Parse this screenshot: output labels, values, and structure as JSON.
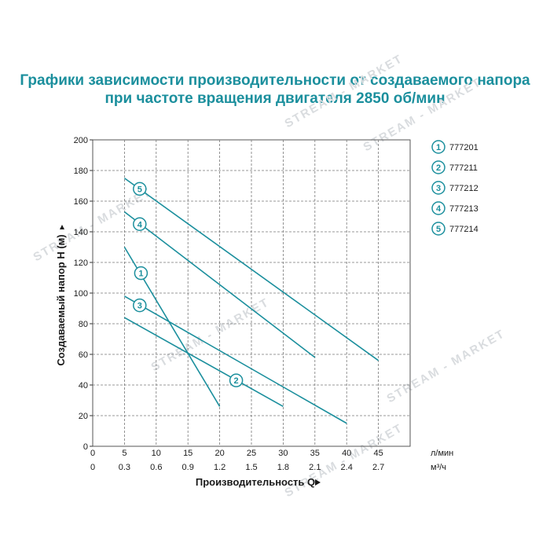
{
  "chart_data": {
    "type": "line",
    "title_lines": [
      "Графики зависимости производительности от создаваемого напора",
      "при частоте вращения двигателя 2850 об/мин"
    ],
    "ylabel": "Создаваемый напор H (м)",
    "xlabel": "Производительность Q",
    "xlabel_lpm_unit": "л/мин",
    "xlabel_m3h_unit": "м³/ч",
    "xlim": [
      0,
      50
    ],
    "ylim": [
      0,
      200
    ],
    "x_ticks_lpm": [
      "0",
      "5",
      "10",
      "15",
      "20",
      "25",
      "30",
      "35",
      "40",
      "45"
    ],
    "x_ticks_lpm_values": [
      0,
      5,
      10,
      15,
      20,
      25,
      30,
      35,
      40,
      45
    ],
    "x_ticks_m3h": [
      "0",
      "0.3",
      "0.6",
      "0.9",
      "1.2",
      "1.5",
      "1.8",
      "2.1",
      "2.4",
      "2.7"
    ],
    "y_ticks": [
      "0",
      "20",
      "40",
      "60",
      "80",
      "100",
      "120",
      "140",
      "160",
      "180",
      "200"
    ],
    "y_ticks_values": [
      0,
      20,
      40,
      60,
      80,
      100,
      120,
      140,
      160,
      180,
      200
    ],
    "grid": true,
    "legend_position": "right",
    "series": [
      {
        "marker": "1",
        "name": "777201",
        "x": [
          5,
          20
        ],
        "y": [
          130,
          26
        ],
        "label_at": [
          7.6,
          113
        ]
      },
      {
        "marker": "2",
        "name": "777211",
        "x": [
          5,
          30
        ],
        "y": [
          84,
          26
        ],
        "label_at": [
          22.6,
          43
        ]
      },
      {
        "marker": "3",
        "name": "777212",
        "x": [
          5,
          40
        ],
        "y": [
          98,
          15
        ],
        "label_at": [
          7.4,
          92
        ]
      },
      {
        "marker": "4",
        "name": "777213",
        "x": [
          5,
          35
        ],
        "y": [
          153,
          58
        ],
        "label_at": [
          7.4,
          145
        ]
      },
      {
        "marker": "5",
        "name": "777214",
        "x": [
          5,
          45
        ],
        "y": [
          175,
          56
        ],
        "label_at": [
          7.4,
          168
        ]
      }
    ],
    "line_color": "#1b8f9d"
  },
  "watermark": "STREAM - MARKET"
}
